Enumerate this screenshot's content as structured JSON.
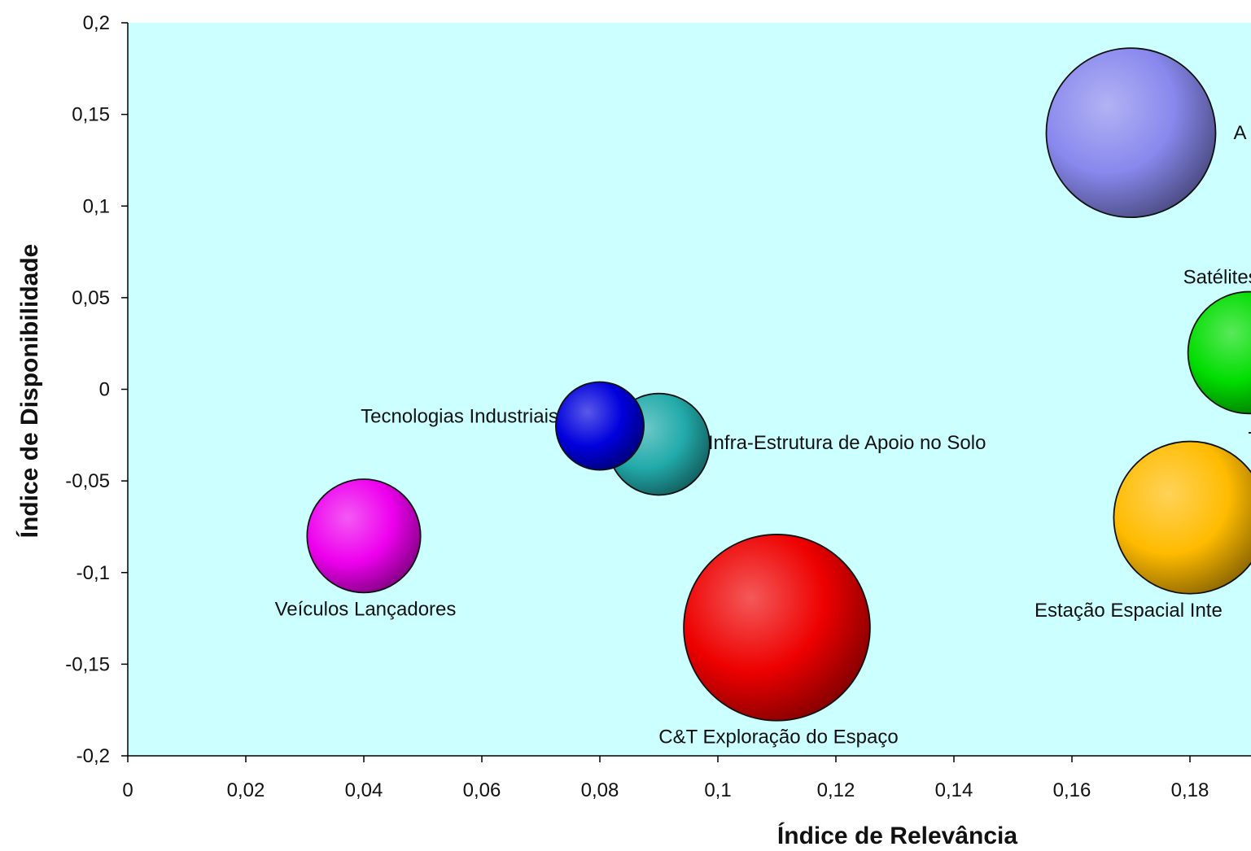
{
  "chart_data": {
    "type": "scatter",
    "subtype": "bubble",
    "title": "",
    "xlabel": "Índice de Relevância",
    "ylabel": "Índice de Disponibilidade",
    "xlim": [
      0,
      0.2
    ],
    "ylim": [
      -0.2,
      0.2
    ],
    "x_ticks": [
      "0",
      "0,02",
      "0,04",
      "0,06",
      "0,08",
      "0,1",
      "0,12",
      "0,14",
      "0,16",
      "0,18"
    ],
    "y_ticks": [
      "0,2",
      "0,15",
      "0,1",
      "0,05",
      "0",
      "-0,05",
      "-0,1",
      "-0,15",
      "-0,2"
    ],
    "plot_background": "#ccffff",
    "grid": false,
    "legend": "none",
    "series": [
      {
        "name": "A",
        "x": 0.17,
        "y": 0.14,
        "size": 1.0,
        "color": "#8888ee",
        "label_position": "right"
      },
      {
        "name": "Satélites e P",
        "x": 0.19,
        "y": 0.02,
        "size": 0.72,
        "color": "#00dd00",
        "label_position": "above"
      },
      {
        "name": "T",
        "x": 0.19,
        "y": 0.02,
        "size": 0.72,
        "color": "#00dd00",
        "label_position": "below-right"
      },
      {
        "name": "Estação Espacial Inte",
        "x": 0.18,
        "y": -0.07,
        "size": 0.9,
        "color": "#ffbb00",
        "label_position": "below"
      },
      {
        "name": "Infra-Estrutura de Apoio no Solo",
        "x": 0.09,
        "y": -0.03,
        "size": 0.6,
        "color": "#22aaaa",
        "label_position": "right"
      },
      {
        "name": "Tecnologias Industriais",
        "x": 0.08,
        "y": -0.02,
        "size": 0.52,
        "color": "#0000dd",
        "label_position": "left"
      },
      {
        "name": "Veículos Lançadores",
        "x": 0.04,
        "y": -0.08,
        "size": 0.67,
        "color": "#ee00ee",
        "label_position": "below"
      },
      {
        "name": "C&T Exploração do Espaço",
        "x": 0.11,
        "y": -0.13,
        "size": 1.1,
        "color": "#ee0000",
        "label_position": "below"
      }
    ]
  }
}
